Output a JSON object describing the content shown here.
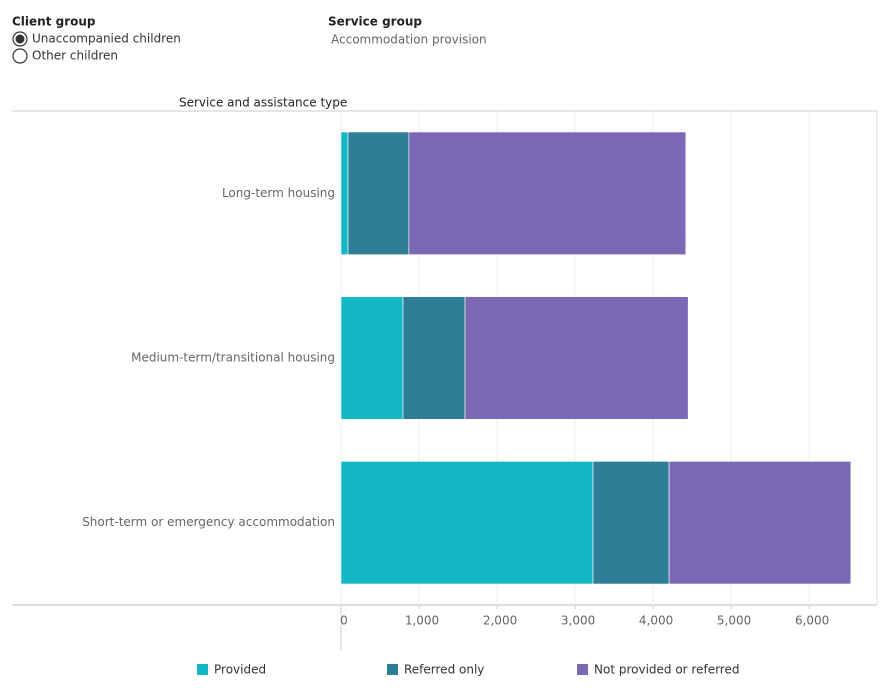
{
  "client_group": {
    "label": "Client group",
    "options": [
      "Unaccompanied children",
      "Other children"
    ],
    "selected": 0
  },
  "service_group": {
    "label": "Service group",
    "value": "Accommodation provision"
  },
  "chart_data": {
    "type": "stacked-barh",
    "y_axis_title": "Service and assistance type",
    "categories": [
      "Long-term housing",
      "Medium-term/transitional housing",
      "Short-term or emergency accommodation"
    ],
    "series": [
      {
        "name": "Provided",
        "color": "#14b8c4",
        "values": [
          90,
          795,
          3230
        ]
      },
      {
        "name": "Referred only",
        "color": "#2e7d96",
        "values": [
          780,
          795,
          975
        ]
      },
      {
        "name": "Not provided or referred",
        "color": "#7b68b5",
        "values": [
          3550,
          2860,
          2330
        ]
      }
    ],
    "xlim": [
      0,
      6870
    ],
    "xticks": [
      0,
      {
        "value": 1000,
        "label": "1,000"
      },
      {
        "value": 2000,
        "label": "2,000"
      },
      {
        "value": 3000,
        "label": "3,000"
      },
      {
        "value": 4000,
        "label": "4,000"
      },
      {
        "value": 5000,
        "label": "5,000"
      },
      {
        "value": 6000,
        "label": "6,000"
      }
    ],
    "grid": true
  }
}
